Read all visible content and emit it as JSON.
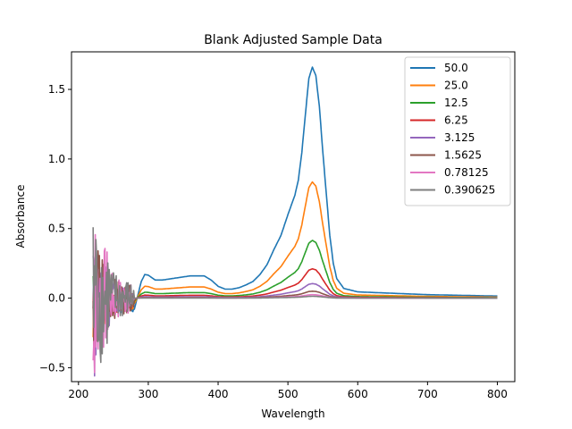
{
  "chart_data": {
    "type": "line",
    "title": "Blank Adjusted Sample Data",
    "xlabel": "Wavelength",
    "ylabel": "Absorbance",
    "xlim": [
      190,
      825
    ],
    "ylim": [
      -0.6,
      1.77
    ],
    "x_ticks": [
      200,
      300,
      400,
      500,
      600,
      700,
      800
    ],
    "y_ticks": [
      -0.5,
      0.0,
      0.5,
      1.0,
      1.5
    ],
    "x_tick_labels": [
      "200",
      "300",
      "400",
      "500",
      "600",
      "700",
      "800"
    ],
    "y_tick_labels": [
      "−0.5",
      "0.0",
      "0.5",
      "1.0",
      "1.5"
    ],
    "grid": false,
    "legend_position": "upper-right",
    "base_profile": {
      "x": [
        200,
        280,
        285,
        290,
        295,
        300,
        310,
        320,
        340,
        360,
        380,
        390,
        400,
        410,
        420,
        430,
        440,
        450,
        460,
        470,
        480,
        490,
        500,
        510,
        515,
        520,
        525,
        530,
        535,
        540,
        545,
        550,
        555,
        560,
        565,
        570,
        580,
        600,
        650,
        700,
        750,
        800
      ],
      "y": [
        0,
        -0.08,
        0.02,
        0.12,
        0.17,
        0.165,
        0.13,
        0.13,
        0.145,
        0.16,
        0.16,
        0.13,
        0.085,
        0.065,
        0.065,
        0.075,
        0.095,
        0.12,
        0.17,
        0.24,
        0.35,
        0.45,
        0.6,
        0.74,
        0.85,
        1.05,
        1.32,
        1.58,
        1.66,
        1.6,
        1.38,
        1.05,
        0.75,
        0.45,
        0.25,
        0.14,
        0.07,
        0.045,
        0.035,
        0.025,
        0.02,
        0.015
      ]
    },
    "noise_start": 221,
    "noise_end": 280,
    "series": [
      {
        "name": "50.0",
        "color": "#1f77b4",
        "scale": 1.0,
        "noise": 0.08,
        "seed": 1
      },
      {
        "name": "25.0",
        "color": "#ff7f0e",
        "scale": 0.503,
        "noise": 0.12,
        "seed": 2
      },
      {
        "name": "12.5",
        "color": "#2ca02c",
        "scale": 0.25,
        "noise": 0.14,
        "seed": 3
      },
      {
        "name": "6.25",
        "color": "#d62728",
        "scale": 0.127,
        "noise": 0.16,
        "seed": 4
      },
      {
        "name": "3.125",
        "color": "#9467bd",
        "scale": 0.063,
        "noise": 0.2,
        "seed": 5
      },
      {
        "name": "1.5625",
        "color": "#8c564b",
        "scale": 0.03,
        "noise": 0.22,
        "seed": 6
      },
      {
        "name": "0.78125",
        "color": "#e377c2",
        "scale": 0.015,
        "noise": 0.26,
        "seed": 7
      },
      {
        "name": "0.390625",
        "color": "#7f7f7f",
        "scale": 0.008,
        "noise": 0.3,
        "seed": 8
      }
    ]
  }
}
